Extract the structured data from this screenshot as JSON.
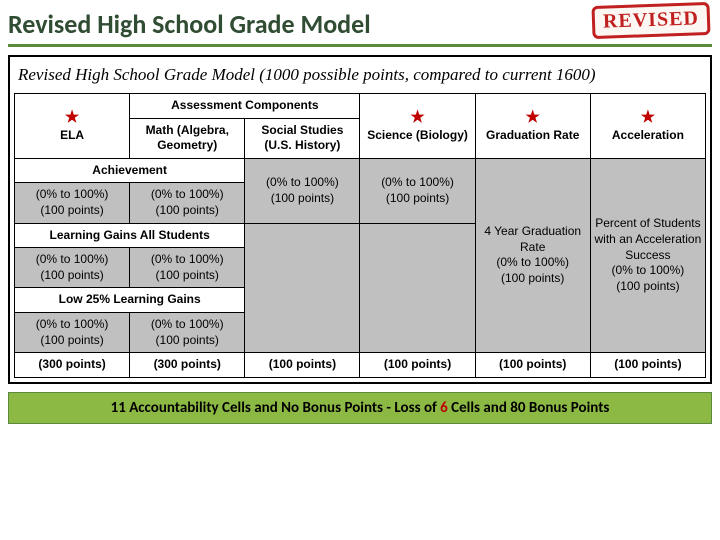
{
  "title": "Revised High School Grade Model",
  "stamp": "REVISED",
  "subtitle": "Revised High School Grade Model (1000 possible points, compared to current 1600)",
  "star": "★",
  "headers": {
    "assessment": "Assessment Components",
    "ela": "ELA",
    "math": "Math (Algebra, Geometry)",
    "ss": "Social Studies (U.S. History)",
    "sci": "Science (Biology)",
    "grad": "Graduation Rate",
    "accel": "Acceleration"
  },
  "sections": {
    "achievement": "Achievement",
    "gains_all": "Learning Gains All Students",
    "low25": "Low 25% Learning Gains"
  },
  "cell": {
    "pct100": "(0% to 100%)\n(100 points)",
    "grad": "4 Year Graduation Rate\n(0% to 100%)\n(100 points)",
    "accel": "Percent of Students with an Acceleration Success\n(0% to 100%)\n(100 points)"
  },
  "totals": {
    "p300": "(300 points)",
    "p100": "(100 points)"
  },
  "footer": {
    "pre": "11 Accountability Cells and No Bonus Points - Loss of ",
    "six": "6",
    "post": " Cells and 80 Bonus Points"
  },
  "colors": {
    "title": "#304d33",
    "title_underline": "#5a8a3a",
    "stamp": "#c02020",
    "shade": "#c0c0c0",
    "star": "#c00000",
    "footer_bg": "#8cb944",
    "footer_border": "#5a8a3a",
    "red": "#c00000"
  }
}
